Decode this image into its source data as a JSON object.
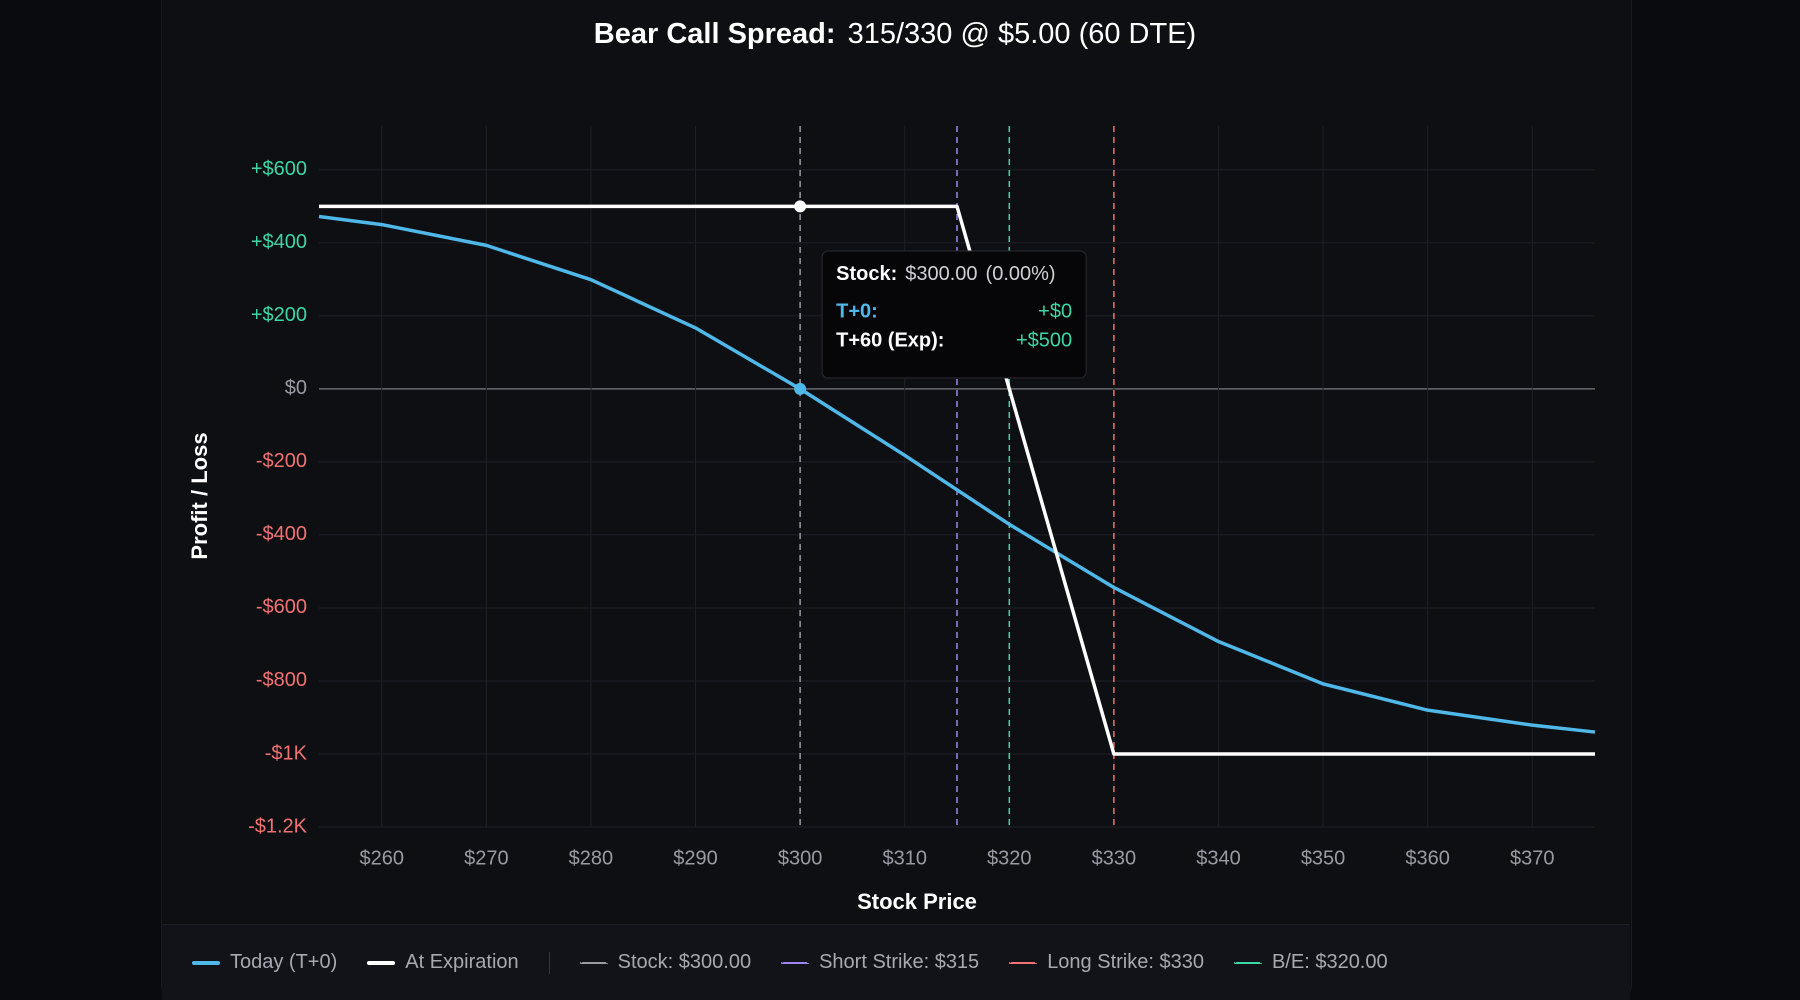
{
  "chart_data": {
    "type": "line",
    "title": "Bear Call Spread:",
    "subtitle": "315/330 @ $5.00 (60 DTE)",
    "x_label": "Stock Price",
    "y_label": "Profit / Loss",
    "xlim": [
      254,
      376
    ],
    "ylim": [
      -1200,
      720
    ],
    "xticks": [
      {
        "value": 260,
        "label": "$260"
      },
      {
        "value": 270,
        "label": "$270"
      },
      {
        "value": 280,
        "label": "$280"
      },
      {
        "value": 290,
        "label": "$290"
      },
      {
        "value": 300,
        "label": "$300"
      },
      {
        "value": 310,
        "label": "$310"
      },
      {
        "value": 320,
        "label": "$320"
      },
      {
        "value": 330,
        "label": "$330"
      },
      {
        "value": 340,
        "label": "$340"
      },
      {
        "value": 350,
        "label": "$350"
      },
      {
        "value": 360,
        "label": "$360"
      },
      {
        "value": 370,
        "label": "$370"
      }
    ],
    "yticks": [
      {
        "value": 600,
        "label": "+$600"
      },
      {
        "value": 400,
        "label": "+$400"
      },
      {
        "value": 200,
        "label": "+$200"
      },
      {
        "value": 0,
        "label": "$0"
      },
      {
        "value": -200,
        "label": "-$200"
      },
      {
        "value": -400,
        "label": "-$400"
      },
      {
        "value": -600,
        "label": "-$600"
      },
      {
        "value": -800,
        "label": "-$800"
      },
      {
        "value": -1000,
        "label": "-$1K"
      },
      {
        "value": -1200,
        "label": "-$1.2K"
      }
    ],
    "grid": true,
    "series": [
      {
        "name": "Today (T+0)",
        "color": "#4fb8e8",
        "x": [
          254,
          260,
          270,
          280,
          290,
          300,
          310,
          320,
          330,
          340,
          350,
          360,
          370,
          376
        ],
        "values": [
          472,
          450,
          393,
          299,
          167,
          0,
          -182,
          -371,
          -544,
          -692,
          -808,
          -880,
          -921,
          -940
        ]
      },
      {
        "name": "At Expiration",
        "color": "#ffffff",
        "x": [
          254,
          315,
          330,
          376
        ],
        "values": [
          500,
          500,
          -1000,
          -1000
        ]
      }
    ],
    "vlines": [
      {
        "name": "Stock: $300.00",
        "value": 300,
        "color": "#9a9aa2"
      },
      {
        "name": "Short Strike: $315",
        "value": 315,
        "color": "#9d86f0"
      },
      {
        "name": "Long Strike: $330",
        "value": 330,
        "color": "#f07272"
      },
      {
        "name": "B/E: $320.00",
        "value": 320,
        "color": "#3fd6a6"
      }
    ],
    "tooltip": {
      "x": 300,
      "stock_label": "Stock:",
      "x_label": "$300.00",
      "change_label": "(0.00%)",
      "rows": [
        {
          "label": "T+0:",
          "value": 0,
          "value_label": "+$0"
        },
        {
          "label": "T+60 (Exp):",
          "value": 500,
          "value_label": "+$500"
        }
      ]
    }
  }
}
